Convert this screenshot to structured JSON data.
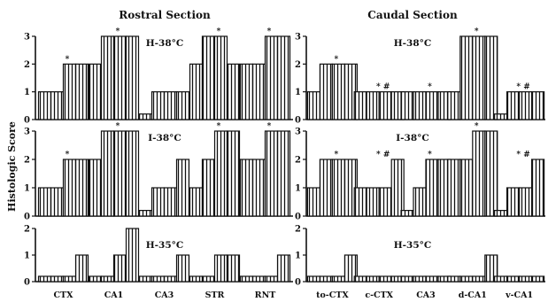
{
  "figure": {
    "ylabel": "Histologic Score",
    "sections": [
      "Rostral Section",
      "Caudal Section"
    ]
  },
  "chart_data": {
    "type": "bar",
    "bar_fill": "vertical-hatch",
    "ylabel": "Histologic Score",
    "categories_rostral": [
      "CTX",
      "CA1",
      "CA3",
      "STR",
      "RNT"
    ],
    "categories_caudal": [
      "to-CTX",
      "c-CTX",
      "CA3",
      "d-CA1",
      "v-CA1"
    ],
    "rows": [
      {
        "label": "H-38°C",
        "ylim": [
          0,
          3
        ],
        "yticks": [
          "0",
          "1",
          "2",
          "3"
        ],
        "rostral": [
          [
            1,
            1,
            2,
            2
          ],
          [
            2,
            3,
            3,
            3
          ],
          [
            0.2,
            1,
            1,
            1
          ],
          [
            2,
            3,
            3,
            2
          ],
          [
            2,
            2,
            3,
            3
          ]
        ],
        "caudal": [
          [
            1,
            2,
            2,
            2
          ],
          [
            1,
            1,
            1,
            1
          ],
          [
            1,
            1,
            1,
            1
          ],
          [
            1,
            3,
            3,
            3
          ],
          [
            0.2,
            1,
            1,
            1
          ]
        ],
        "marks_rostral": [
          "*",
          "*",
          "",
          "*",
          "*"
        ],
        "marks_caudal": [
          "*",
          "* #",
          "*",
          "*",
          "* #"
        ]
      },
      {
        "label": "I-38°C",
        "ylim": [
          0,
          3
        ],
        "yticks": [
          "0",
          "1",
          "2",
          "3"
        ],
        "rostral": [
          [
            1,
            1,
            2,
            2
          ],
          [
            2,
            3,
            3,
            3
          ],
          [
            0.2,
            1,
            1,
            2
          ],
          [
            1,
            2,
            3,
            3
          ],
          [
            2,
            2,
            3,
            3
          ]
        ],
        "caudal": [
          [
            1,
            2,
            2,
            2
          ],
          [
            1,
            1,
            1,
            2
          ],
          [
            0.2,
            1,
            2,
            2
          ],
          [
            2,
            2,
            3,
            3
          ],
          [
            0.2,
            1,
            1,
            2
          ]
        ],
        "marks_rostral": [
          "*",
          "*",
          "",
          "*",
          "*"
        ],
        "marks_caudal": [
          "*",
          "* #",
          "*",
          "*",
          "* #"
        ]
      },
      {
        "label": "H-35°C",
        "ylim": [
          0,
          2
        ],
        "yticks": [
          "0",
          "1",
          "2"
        ],
        "rostral": [
          [
            0.2,
            0.2,
            0.2,
            1
          ],
          [
            0.2,
            0.2,
            1,
            2
          ],
          [
            0.2,
            0.2,
            0.2,
            1
          ],
          [
            0.2,
            0.2,
            1,
            1
          ],
          [
            0.2,
            0.2,
            0.2,
            1
          ]
        ],
        "caudal": [
          [
            0.2,
            0.2,
            0.2,
            1
          ],
          [
            0.2,
            0.2,
            0.2,
            0.2
          ],
          [
            0.2,
            0.2,
            0.2,
            0.2
          ],
          [
            0.2,
            0.2,
            0.2,
            1
          ],
          [
            0.2,
            0.2,
            0.2,
            0.2
          ]
        ],
        "marks_rostral": [
          "",
          "",
          "",
          "",
          ""
        ],
        "marks_caudal": [
          "",
          "",
          "",
          "",
          ""
        ]
      }
    ]
  }
}
